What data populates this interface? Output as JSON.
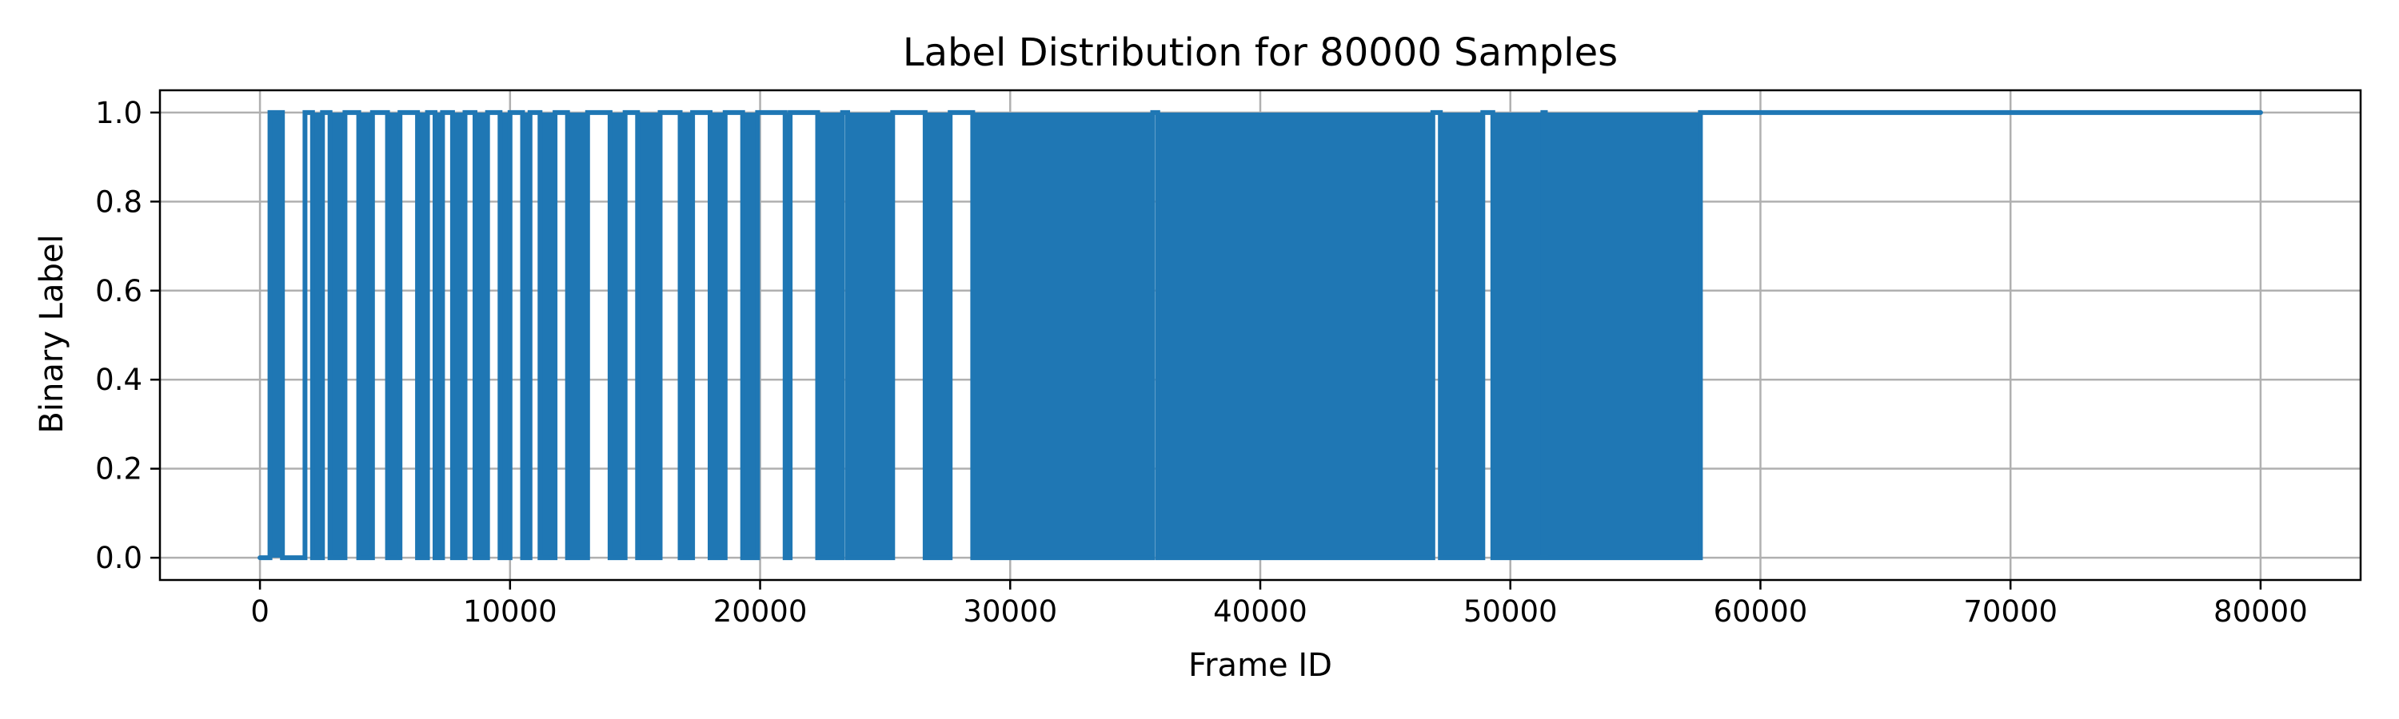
{
  "chart_data": {
    "type": "line",
    "title": "Label Distribution for 80000 Samples",
    "xlabel": "Frame ID",
    "ylabel": "Binary Label",
    "xlim": [
      -4000,
      84000
    ],
    "ylim": [
      -0.05,
      1.05
    ],
    "xticks": [
      0,
      10000,
      20000,
      30000,
      40000,
      50000,
      60000,
      70000,
      80000
    ],
    "xtick_labels": [
      "0",
      "10000",
      "20000",
      "30000",
      "40000",
      "50000",
      "60000",
      "70000",
      "80000"
    ],
    "yticks": [
      0.0,
      0.2,
      0.4,
      0.6,
      0.8,
      1.0
    ],
    "ytick_labels": [
      "0.0",
      "0.2",
      "0.4",
      "0.6",
      "0.8",
      "1.0"
    ],
    "grid": true,
    "legend": "none",
    "series_color": "#1f77b4",
    "series": [
      {
        "x": [
          0,
          400,
          400,
          900,
          900,
          1800,
          1800,
          2100,
          2100,
          2500,
          2500,
          2800,
          2800,
          3400,
          3400,
          3950,
          3950,
          4500,
          4500,
          5100,
          5100,
          5600,
          5600,
          6300,
          6300,
          6700,
          6700,
          7000,
          7000,
          7300,
          7300,
          7700,
          7700,
          8200,
          8200,
          8600,
          8600,
          9100,
          9100,
          9600,
          9600,
          10000,
          10000,
          10500,
          10500,
          10800,
          10800,
          11200,
          11200,
          11800,
          11800,
          12300,
          12300,
          13100,
          13100,
          14000,
          14000,
          14600,
          14600,
          15100,
          15100,
          16000,
          16000,
          16800,
          16800,
          17300,
          17300,
          18000,
          18000,
          18600,
          18600,
          19300,
          19300,
          19900,
          19900,
          21000,
          21000,
          21200,
          21200,
          22300,
          22300,
          23300,
          23300,
          23500,
          23500,
          25300,
          25300,
          26600,
          26600,
          27600,
          27600,
          28500,
          28500,
          35700,
          35700,
          35900,
          35900,
          46900,
          46900,
          47200,
          47200,
          48900,
          48900,
          49300,
          49300,
          51300,
          51300,
          51400,
          51400,
          57600,
          57600,
          80000
        ],
        "y": [
          0,
          0,
          1,
          1,
          0,
          0,
          1,
          1,
          0,
          0,
          1,
          1,
          0,
          0,
          1,
          1,
          0,
          0,
          1,
          1,
          0,
          0,
          1,
          1,
          0,
          0,
          1,
          1,
          0,
          0,
          1,
          1,
          0,
          0,
          1,
          1,
          0,
          0,
          1,
          1,
          0,
          0,
          1,
          1,
          0,
          0,
          1,
          1,
          0,
          0,
          1,
          1,
          0,
          0,
          1,
          1,
          0,
          0,
          1,
          1,
          0,
          0,
          1,
          1,
          0,
          0,
          1,
          1,
          0,
          0,
          1,
          1,
          0,
          0,
          1,
          1,
          0,
          0,
          1,
          1,
          0,
          0,
          1,
          1,
          0,
          0,
          1,
          1,
          0,
          0,
          1,
          1,
          0,
          0,
          1,
          1,
          0,
          0,
          1,
          1,
          0,
          0,
          1,
          1,
          0,
          0,
          1,
          1,
          0,
          0,
          1,
          1
        ]
      }
    ],
    "dense_regions": [
      [
        400,
        900
      ],
      [
        2100,
        2500
      ],
      [
        2800,
        3400
      ],
      [
        3950,
        4500
      ],
      [
        5100,
        5600
      ],
      [
        6300,
        6700
      ],
      [
        7000,
        7300
      ],
      [
        7700,
        8200
      ],
      [
        8600,
        9100
      ],
      [
        9600,
        10000
      ],
      [
        10500,
        10800
      ],
      [
        11200,
        11800
      ],
      [
        12300,
        13100
      ],
      [
        14000,
        14600
      ],
      [
        15100,
        16000
      ],
      [
        16800,
        17300
      ],
      [
        18000,
        18600
      ],
      [
        19300,
        19900
      ],
      [
        21000,
        21200
      ],
      [
        22300,
        23300
      ],
      [
        23500,
        25300
      ],
      [
        26600,
        27600
      ],
      [
        28500,
        35700
      ],
      [
        35900,
        46900
      ],
      [
        47200,
        48900
      ],
      [
        49300,
        51300
      ],
      [
        51400,
        57600
      ]
    ]
  }
}
